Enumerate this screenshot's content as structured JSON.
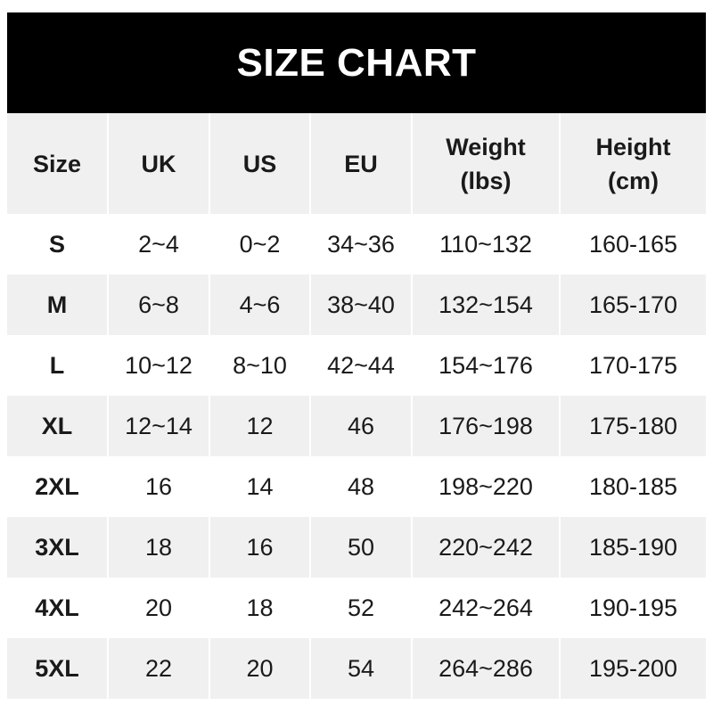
{
  "title": "SIZE CHART",
  "headers": [
    "Size",
    "UK",
    "US",
    "EU",
    "Weight\n(lbs)",
    "Height\n(cm)"
  ],
  "rows": [
    [
      "S",
      "2~4",
      "0~2",
      "34~36",
      "110~132",
      "160-165"
    ],
    [
      "M",
      "6~8",
      "4~6",
      "38~40",
      "132~154",
      "165-170"
    ],
    [
      "L",
      "10~12",
      "8~10",
      "42~44",
      "154~176",
      "170-175"
    ],
    [
      "XL",
      "12~14",
      "12",
      "46",
      "176~198",
      "175-180"
    ],
    [
      "2XL",
      "16",
      "14",
      "48",
      "198~220",
      "180-185"
    ],
    [
      "3XL",
      "18",
      "16",
      "50",
      "220~242",
      "185-190"
    ],
    [
      "4XL",
      "20",
      "18",
      "52",
      "242~264",
      "190-195"
    ],
    [
      "5XL",
      "22",
      "20",
      "54",
      "264~286",
      "195-200"
    ]
  ],
  "colors": {
    "title_bg": "#000000",
    "stripe": "#f0f0f0",
    "text": "#1a1a1a"
  }
}
